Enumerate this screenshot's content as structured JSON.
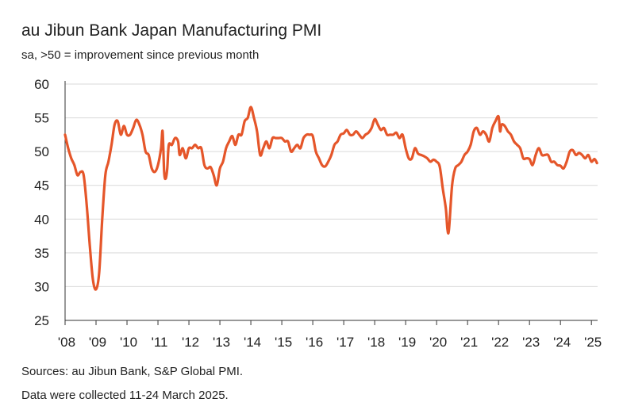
{
  "chart_data": {
    "type": "line",
    "title": "au Jibun Bank Japan Manufacturing PMI",
    "subtitle": "sa, >50 = improvement since previous month",
    "xlabel": "",
    "ylabel": "",
    "ylim": [
      25,
      60
    ],
    "xlim": [
      2008.0,
      2025.2
    ],
    "yticks": [
      25,
      30,
      35,
      40,
      45,
      50,
      55,
      60
    ],
    "xticks": [
      {
        "value": 2008,
        "label": "'08"
      },
      {
        "value": 2009,
        "label": "'09"
      },
      {
        "value": 2010,
        "label": "'10"
      },
      {
        "value": 2011,
        "label": "'11"
      },
      {
        "value": 2012,
        "label": "'12"
      },
      {
        "value": 2013,
        "label": "'13"
      },
      {
        "value": 2014,
        "label": "'14"
      },
      {
        "value": 2015,
        "label": "'15"
      },
      {
        "value": 2016,
        "label": "'16"
      },
      {
        "value": 2017,
        "label": "'17"
      },
      {
        "value": 2018,
        "label": "'18"
      },
      {
        "value": 2019,
        "label": "'19"
      },
      {
        "value": 2020,
        "label": "'20"
      },
      {
        "value": 2021,
        "label": "'21"
      },
      {
        "value": 2022,
        "label": "'22"
      },
      {
        "value": 2023,
        "label": "'23"
      },
      {
        "value": 2024,
        "label": "'24"
      },
      {
        "value": 2025,
        "label": "'25"
      }
    ],
    "grid": true,
    "series": [
      {
        "name": "au Jibun Bank Japan Manufacturing PMI",
        "color": "#e5562a",
        "points": [
          [
            2008.0,
            52.5
          ],
          [
            2008.1,
            50.5
          ],
          [
            2008.2,
            49.0
          ],
          [
            2008.3,
            48.0
          ],
          [
            2008.4,
            46.5
          ],
          [
            2008.5,
            47.0
          ],
          [
            2008.6,
            46.5
          ],
          [
            2008.7,
            42.0
          ],
          [
            2008.8,
            36.0
          ],
          [
            2008.9,
            31.0
          ],
          [
            2009.0,
            29.6
          ],
          [
            2009.1,
            32.0
          ],
          [
            2009.2,
            40.0
          ],
          [
            2009.3,
            46.5
          ],
          [
            2009.4,
            48.5
          ],
          [
            2009.5,
            51.0
          ],
          [
            2009.6,
            54.0
          ],
          [
            2009.7,
            54.5
          ],
          [
            2009.8,
            52.5
          ],
          [
            2009.9,
            53.8
          ],
          [
            2010.0,
            52.5
          ],
          [
            2010.1,
            52.5
          ],
          [
            2010.2,
            53.5
          ],
          [
            2010.3,
            54.7
          ],
          [
            2010.4,
            54.0
          ],
          [
            2010.5,
            52.5
          ],
          [
            2010.6,
            50.0
          ],
          [
            2010.7,
            49.5
          ],
          [
            2010.8,
            47.5
          ],
          [
            2010.9,
            47.0
          ],
          [
            2011.0,
            48.0
          ],
          [
            2011.1,
            50.5
          ],
          [
            2011.15,
            53.0
          ],
          [
            2011.2,
            47.0
          ],
          [
            2011.25,
            46.0
          ],
          [
            2011.3,
            47.5
          ],
          [
            2011.35,
            51.0
          ],
          [
            2011.45,
            51.0
          ],
          [
            2011.55,
            52.0
          ],
          [
            2011.65,
            51.5
          ],
          [
            2011.7,
            49.5
          ],
          [
            2011.8,
            50.5
          ],
          [
            2011.9,
            49.0
          ],
          [
            2012.0,
            50.5
          ],
          [
            2012.1,
            50.5
          ],
          [
            2012.2,
            51.0
          ],
          [
            2012.3,
            50.5
          ],
          [
            2012.4,
            50.5
          ],
          [
            2012.5,
            48.0
          ],
          [
            2012.6,
            47.5
          ],
          [
            2012.7,
            47.7
          ],
          [
            2012.8,
            46.5
          ],
          [
            2012.9,
            45.0
          ],
          [
            2013.0,
            47.5
          ],
          [
            2013.1,
            48.5
          ],
          [
            2013.2,
            50.5
          ],
          [
            2013.3,
            51.5
          ],
          [
            2013.4,
            52.3
          ],
          [
            2013.5,
            51.0
          ],
          [
            2013.6,
            52.5
          ],
          [
            2013.7,
            52.5
          ],
          [
            2013.8,
            54.5
          ],
          [
            2013.9,
            55.0
          ],
          [
            2014.0,
            56.6
          ],
          [
            2014.1,
            55.0
          ],
          [
            2014.2,
            53.0
          ],
          [
            2014.3,
            49.5
          ],
          [
            2014.4,
            50.5
          ],
          [
            2014.5,
            51.5
          ],
          [
            2014.6,
            50.5
          ],
          [
            2014.7,
            52.0
          ],
          [
            2014.8,
            52.0
          ],
          [
            2014.9,
            52.0
          ],
          [
            2015.0,
            52.0
          ],
          [
            2015.1,
            51.5
          ],
          [
            2015.2,
            51.5
          ],
          [
            2015.3,
            50.0
          ],
          [
            2015.4,
            50.5
          ],
          [
            2015.5,
            51.0
          ],
          [
            2015.6,
            50.5
          ],
          [
            2015.7,
            52.0
          ],
          [
            2015.8,
            52.5
          ],
          [
            2015.9,
            52.5
          ],
          [
            2016.0,
            52.3
          ],
          [
            2016.1,
            50.0
          ],
          [
            2016.2,
            49.0
          ],
          [
            2016.3,
            48.0
          ],
          [
            2016.4,
            47.8
          ],
          [
            2016.5,
            48.5
          ],
          [
            2016.6,
            49.5
          ],
          [
            2016.7,
            51.0
          ],
          [
            2016.8,
            51.5
          ],
          [
            2016.9,
            52.5
          ],
          [
            2017.0,
            52.7
          ],
          [
            2017.1,
            53.2
          ],
          [
            2017.2,
            52.5
          ],
          [
            2017.3,
            52.5
          ],
          [
            2017.4,
            53.0
          ],
          [
            2017.5,
            52.5
          ],
          [
            2017.6,
            52.0
          ],
          [
            2017.7,
            52.5
          ],
          [
            2017.8,
            52.8
          ],
          [
            2017.9,
            53.5
          ],
          [
            2018.0,
            54.8
          ],
          [
            2018.1,
            54.0
          ],
          [
            2018.2,
            53.2
          ],
          [
            2018.3,
            53.5
          ],
          [
            2018.4,
            52.5
          ],
          [
            2018.5,
            52.5
          ],
          [
            2018.6,
            52.5
          ],
          [
            2018.7,
            52.8
          ],
          [
            2018.8,
            52.0
          ],
          [
            2018.9,
            52.5
          ],
          [
            2019.0,
            50.5
          ],
          [
            2019.1,
            49.0
          ],
          [
            2019.2,
            49.0
          ],
          [
            2019.3,
            50.5
          ],
          [
            2019.4,
            49.7
          ],
          [
            2019.5,
            49.5
          ],
          [
            2019.6,
            49.3
          ],
          [
            2019.7,
            49.0
          ],
          [
            2019.8,
            48.5
          ],
          [
            2019.9,
            48.8
          ],
          [
            2020.0,
            48.5
          ],
          [
            2020.1,
            47.8
          ],
          [
            2020.2,
            44.5
          ],
          [
            2020.3,
            41.5
          ],
          [
            2020.35,
            38.5
          ],
          [
            2020.4,
            38.5
          ],
          [
            2020.5,
            45.0
          ],
          [
            2020.6,
            47.5
          ],
          [
            2020.7,
            48.0
          ],
          [
            2020.8,
            48.5
          ],
          [
            2020.9,
            49.5
          ],
          [
            2021.0,
            50.0
          ],
          [
            2021.1,
            51.0
          ],
          [
            2021.2,
            53.0
          ],
          [
            2021.3,
            53.5
          ],
          [
            2021.4,
            52.5
          ],
          [
            2021.5,
            53.0
          ],
          [
            2021.6,
            52.5
          ],
          [
            2021.7,
            51.5
          ],
          [
            2021.8,
            53.5
          ],
          [
            2021.9,
            54.5
          ],
          [
            2022.0,
            55.2
          ],
          [
            2022.05,
            53.0
          ],
          [
            2022.1,
            54.0
          ],
          [
            2022.2,
            53.8
          ],
          [
            2022.3,
            53.0
          ],
          [
            2022.4,
            52.5
          ],
          [
            2022.5,
            51.5
          ],
          [
            2022.6,
            51.0
          ],
          [
            2022.7,
            50.5
          ],
          [
            2022.8,
            49.0
          ],
          [
            2022.9,
            49.0
          ],
          [
            2023.0,
            48.9
          ],
          [
            2023.1,
            48.0
          ],
          [
            2023.2,
            49.5
          ],
          [
            2023.3,
            50.5
          ],
          [
            2023.4,
            49.5
          ],
          [
            2023.5,
            49.5
          ],
          [
            2023.6,
            49.5
          ],
          [
            2023.7,
            48.5
          ],
          [
            2023.8,
            48.5
          ],
          [
            2023.9,
            48.0
          ],
          [
            2024.0,
            47.9
          ],
          [
            2024.1,
            47.5
          ],
          [
            2024.2,
            48.5
          ],
          [
            2024.3,
            50.0
          ],
          [
            2024.4,
            50.2
          ],
          [
            2024.5,
            49.5
          ],
          [
            2024.6,
            49.8
          ],
          [
            2024.7,
            49.5
          ],
          [
            2024.8,
            49.0
          ],
          [
            2024.9,
            49.5
          ],
          [
            2025.0,
            48.5
          ],
          [
            2025.1,
            48.9
          ],
          [
            2025.18,
            48.3
          ]
        ]
      }
    ]
  },
  "footer": {
    "sources": "Sources: au Jibun Bank, S&P Global PMI.",
    "collected": "Data were collected 11-24 March 2025."
  }
}
